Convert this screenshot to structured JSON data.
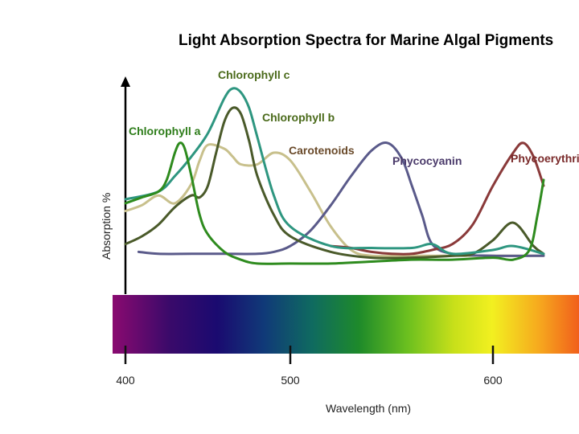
{
  "chart_data": {
    "type": "line",
    "title": "Light Absorption Spectra for Marine Algal Pigments",
    "xlabel": "Wavelength (nm)",
    "ylabel": "Absorption %",
    "x_ticks": [
      400,
      500,
      600
    ],
    "xlim": [
      400,
      625
    ],
    "ylim": [
      0,
      100
    ],
    "grid": false,
    "spectrum_bar": true,
    "series": [
      {
        "name": "Chlorophyll a",
        "color": "#2e8b1e",
        "label_color": "#2e7d1a",
        "x": [
          400,
          410,
          420,
          425,
          430,
          433,
          436,
          440,
          445,
          450,
          460,
          470,
          480,
          500,
          520,
          540,
          560,
          580,
          600,
          610,
          618,
          622,
          625
        ],
        "y": [
          36,
          39,
          42,
          48,
          62,
          67,
          64,
          50,
          30,
          20,
          11,
          7,
          5,
          5,
          5,
          6,
          7,
          7,
          8,
          7,
          12,
          30,
          48
        ]
      },
      {
        "name": "Chlorophyll b",
        "color": "#4a5a2a",
        "label_color": "#4a6a1a",
        "x": [
          400,
          410,
          420,
          430,
          440,
          445,
          450,
          455,
          460,
          465,
          470,
          475,
          480,
          490,
          500,
          520,
          540,
          560,
          580,
          590,
          600,
          610,
          620,
          625
        ],
        "y": [
          15,
          19,
          25,
          34,
          40,
          39,
          45,
          62,
          78,
          85,
          82,
          68,
          50,
          30,
          19,
          11,
          8,
          8,
          9,
          10,
          17,
          26,
          14,
          10
        ]
      },
      {
        "name": "Chlorophyll c",
        "color": "#2e9680",
        "label_color": "#4a6a1a",
        "x": [
          400,
          420,
          430,
          440,
          450,
          460,
          465,
          470,
          475,
          480,
          490,
          500,
          520,
          540,
          560,
          570,
          580,
          600,
          610,
          625
        ],
        "y": [
          38,
          42,
          50,
          60,
          72,
          90,
          95,
          93,
          85,
          70,
          40,
          24,
          14,
          13,
          13,
          15,
          10,
          12,
          14,
          10
        ]
      },
      {
        "name": "Carotenoids",
        "color": "#c8c08c",
        "label_color": "#6a4a2a",
        "x": [
          400,
          410,
          420,
          430,
          440,
          445,
          450,
          460,
          465,
          470,
          480,
          490,
          500,
          510,
          520,
          530,
          540,
          560,
          600,
          625
        ],
        "y": [
          32,
          35,
          40,
          36,
          46,
          58,
          66,
          64,
          60,
          56,
          56,
          62,
          58,
          42,
          24,
          12,
          9,
          9,
          9,
          9
        ]
      },
      {
        "name": "Phycocyanin",
        "color": "#5a5a8a",
        "label_color": "#4a3a6a",
        "x": [
          408,
          420,
          440,
          460,
          480,
          490,
          500,
          510,
          520,
          530,
          540,
          548,
          555,
          560,
          565,
          570,
          580,
          600,
          625
        ],
        "y": [
          11,
          10,
          10,
          10,
          10,
          11,
          14,
          22,
          35,
          50,
          63,
          67,
          59,
          45,
          30,
          15,
          10,
          9,
          9
        ]
      },
      {
        "name": "Phycoerythrin",
        "color": "#8a3a3a",
        "label_color": "#7a2a2a",
        "x": [
          520,
          530,
          540,
          550,
          560,
          570,
          580,
          590,
          600,
          610,
          615,
          620,
          625
        ],
        "y": [
          14,
          13,
          11,
          10,
          10,
          12,
          15,
          25,
          45,
          62,
          67,
          60,
          45
        ]
      }
    ]
  }
}
